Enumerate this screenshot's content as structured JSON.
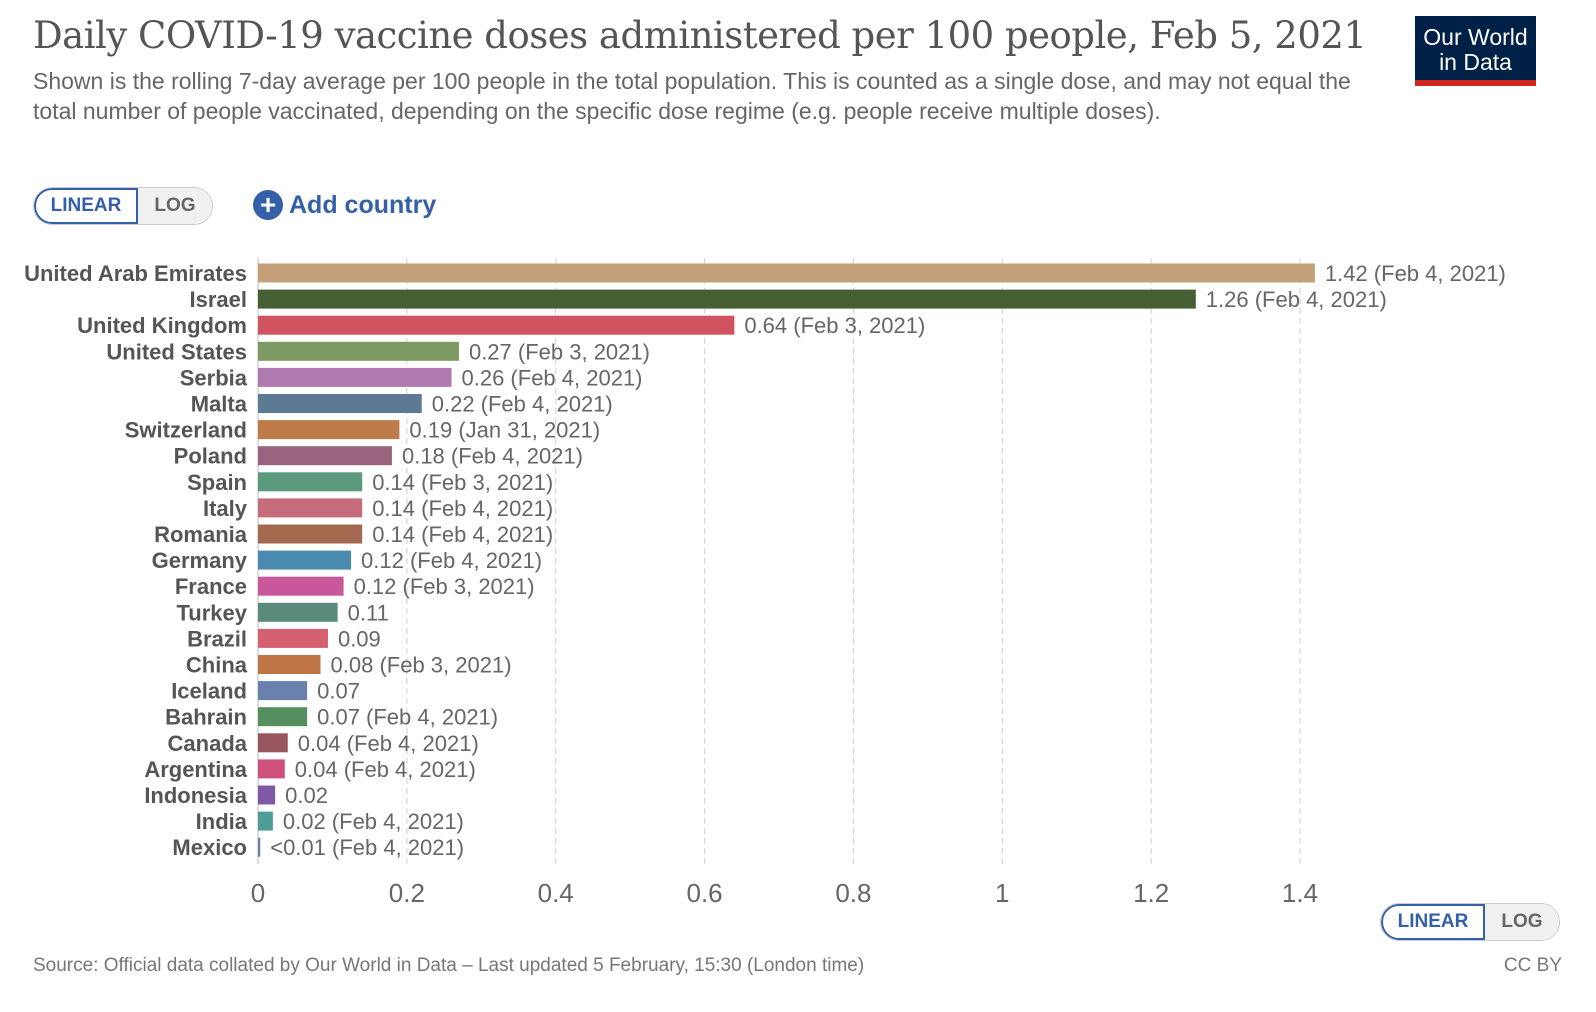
{
  "header": {
    "title": "Daily COVID-19 vaccine doses administered per 100 people, Feb 5, 2021",
    "subtitle": "Shown is the rolling 7-day average per 100 people in the total population. This is counted as a single dose, and may not equal the total number of people vaccinated, depending on the specific dose regime (e.g. people receive multiple doses).",
    "logo_line1": "Our World",
    "logo_line2": "in Data",
    "logo_colors": {
      "background": "#002147",
      "stripe": "#ce261e"
    }
  },
  "controls": {
    "linear_label": "LINEAR",
    "log_label": "LOG",
    "add_country_label": "Add country",
    "add_icon": "plus-circle-icon",
    "accent": "#3360a9"
  },
  "chart_data": {
    "type": "bar",
    "orientation": "horizontal",
    "xlim": [
      0,
      1.4
    ],
    "xticks": [
      "0",
      "0.2",
      "0.4",
      "0.6",
      "0.8",
      "1",
      "1.2",
      "1.4"
    ],
    "grid": true,
    "bars": [
      {
        "country": "United Arab Emirates",
        "value": 1.42,
        "label": "1.42 (Feb 4, 2021)",
        "color": "#c4a079"
      },
      {
        "country": "Israel",
        "value": 1.26,
        "label": "1.26 (Feb 4, 2021)",
        "color": "#466034"
      },
      {
        "country": "United Kingdom",
        "value": 0.64,
        "label": "0.64 (Feb 3, 2021)",
        "color": "#d05460"
      },
      {
        "country": "United States",
        "value": 0.27,
        "label": "0.27 (Feb 3, 2021)",
        "color": "#7c9a61"
      },
      {
        "country": "Serbia",
        "value": 0.26,
        "label": "0.26 (Feb 4, 2021)",
        "color": "#ae7aaf"
      },
      {
        "country": "Malta",
        "value": 0.22,
        "label": "0.22 (Feb 4, 2021)",
        "color": "#5c7a94"
      },
      {
        "country": "Switzerland",
        "value": 0.19,
        "label": "0.19 (Jan 31, 2021)",
        "color": "#bd7b49"
      },
      {
        "country": "Poland",
        "value": 0.18,
        "label": "0.18 (Feb 4, 2021)",
        "color": "#9b637e"
      },
      {
        "country": "Spain",
        "value": 0.14,
        "label": "0.14 (Feb 3, 2021)",
        "color": "#5b9a7c"
      },
      {
        "country": "Italy",
        "value": 0.14,
        "label": "0.14 (Feb 4, 2021)",
        "color": "#c56b7a"
      },
      {
        "country": "Romania",
        "value": 0.14,
        "label": "0.14 (Feb 4, 2021)",
        "color": "#a46a50"
      },
      {
        "country": "Germany",
        "value": 0.125,
        "label": "0.12 (Feb 4, 2021)",
        "color": "#4c8bb1"
      },
      {
        "country": "France",
        "value": 0.115,
        "label": "0.12 (Feb 3, 2021)",
        "color": "#c9589a"
      },
      {
        "country": "Turkey",
        "value": 0.107,
        "label": "0.11",
        "color": "#598a7a"
      },
      {
        "country": "Brazil",
        "value": 0.094,
        "label": "0.09",
        "color": "#d4616f"
      },
      {
        "country": "China",
        "value": 0.084,
        "label": "0.08 (Feb 3, 2021)",
        "color": "#c07547"
      },
      {
        "country": "Iceland",
        "value": 0.066,
        "label": "0.07",
        "color": "#6a81ad"
      },
      {
        "country": "Bahrain",
        "value": 0.066,
        "label": "0.07 (Feb 4, 2021)",
        "color": "#568f5f"
      },
      {
        "country": "Canada",
        "value": 0.04,
        "label": "0.04 (Feb 4, 2021)",
        "color": "#97555e"
      },
      {
        "country": "Argentina",
        "value": 0.036,
        "label": "0.04 (Feb 4, 2021)",
        "color": "#cf4f7d"
      },
      {
        "country": "Indonesia",
        "value": 0.023,
        "label": "0.02",
        "color": "#7d59a6"
      },
      {
        "country": "India",
        "value": 0.02,
        "label": "0.02 (Feb 4, 2021)",
        "color": "#4e9e95"
      },
      {
        "country": "Mexico",
        "value": 0.003,
        "label": "<0.01 (Feb 4, 2021)",
        "color": "#6e7fa3"
      }
    ]
  },
  "footer": {
    "source": "Source: Official data collated by Our World in Data – Last updated 5 February, 15:30 (London time)",
    "license": "CC BY"
  }
}
